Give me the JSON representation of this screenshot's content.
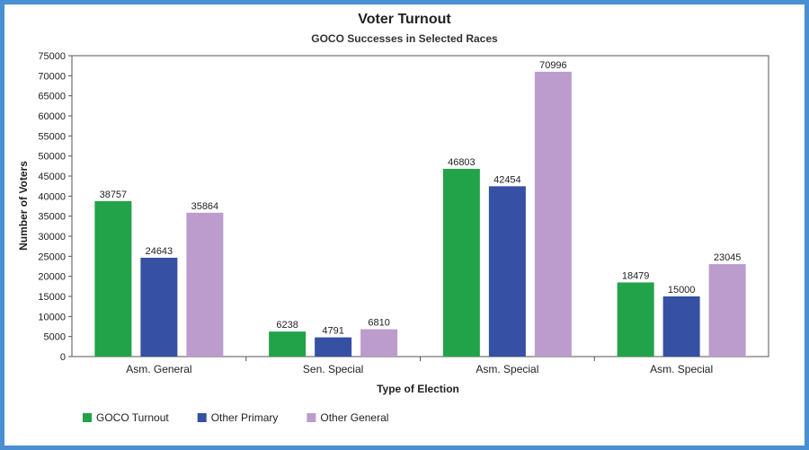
{
  "chart_data": {
    "type": "bar",
    "title": "Voter Turnout",
    "subtitle": "GOCO Successes in Selected Races",
    "xlabel": "Type of Election",
    "ylabel": "Number of Voters",
    "ylim": [
      0,
      75000
    ],
    "ytick_step": 5000,
    "grid": false,
    "legend_position": "bottom-left",
    "categories": [
      "Asm. General",
      "Sen. Special",
      "Asm. Special",
      "Asm. Special"
    ],
    "series": [
      {
        "name": "GOCO Turnout",
        "color": "#22a349",
        "values": [
          38757,
          6238,
          46803,
          18479
        ]
      },
      {
        "name": "Other Primary",
        "color": "#3650a3",
        "values": [
          24643,
          4791,
          42454,
          15000
        ]
      },
      {
        "name": "Other General",
        "color": "#bb9ccc",
        "values": [
          35864,
          6810,
          70996,
          23045
        ]
      }
    ]
  }
}
